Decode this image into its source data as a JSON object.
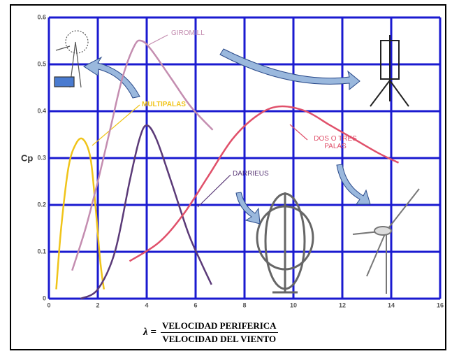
{
  "chart_data": {
    "type": "line",
    "y_label": "Cp",
    "x_label": {
      "symbol": "λ =",
      "numerator": "VELOCIDAD PERIFERICA",
      "denominator": "VELOCIDAD DEL VIENTO"
    },
    "xlim": [
      0,
      16
    ],
    "xticks": [
      0,
      2,
      4,
      6,
      8,
      10,
      12,
      14,
      16
    ],
    "ylim": [
      0,
      0.6
    ],
    "yticks": [
      0,
      0.1,
      0.2,
      0.3,
      0.4,
      0.5,
      0.6
    ],
    "grid": true,
    "grid_color": "#1a1ad0",
    "series": [
      {
        "name": "MULTIPALAS",
        "color": "#f0c419",
        "x": [
          0.3,
          0.5,
          0.8,
          1.1,
          1.4,
          1.7,
          1.9,
          2.1,
          2.25
        ],
        "values": [
          0.02,
          0.15,
          0.28,
          0.33,
          0.34,
          0.3,
          0.2,
          0.08,
          0.02
        ]
      },
      {
        "name": "GIROMILL",
        "color": "#c48db0",
        "x": [
          0.95,
          1.5,
          2,
          2.5,
          3,
          3.5,
          3.8,
          4.2,
          5,
          5.8,
          6.7
        ],
        "values": [
          0.06,
          0.15,
          0.25,
          0.36,
          0.47,
          0.54,
          0.55,
          0.53,
          0.47,
          0.41,
          0.36
        ]
      },
      {
        "name": "DARRIEUS",
        "color": "#5b3a78",
        "x": [
          1.3,
          2,
          2.7,
          3.3,
          3.7,
          4,
          4.4,
          5,
          5.7,
          6.2,
          6.65
        ],
        "values": [
          0,
          0.02,
          0.1,
          0.25,
          0.34,
          0.37,
          0.34,
          0.25,
          0.14,
          0.08,
          0.03
        ]
      },
      {
        "name": "DOS O TRES PALAS",
        "color": "#e0506a",
        "x": [
          3.3,
          4.5,
          5.5,
          6.5,
          7.5,
          8.5,
          9.4,
          10.5,
          11.5,
          12.5,
          13.5,
          14.3
        ],
        "values": [
          0.08,
          0.12,
          0.18,
          0.26,
          0.34,
          0.39,
          0.41,
          0.4,
          0.37,
          0.34,
          0.31,
          0.29
        ]
      }
    ]
  }
}
